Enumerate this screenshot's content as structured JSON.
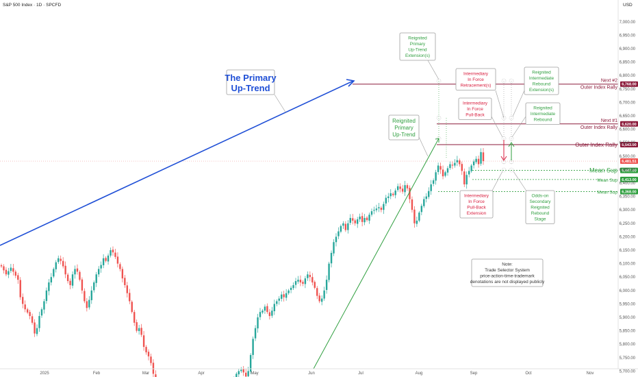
{
  "header": {
    "symbol": "S&P 500 Index · 1D · SPCFD",
    "currency": "USD"
  },
  "colors": {
    "up": "#26a69a",
    "down": "#ef5350",
    "blue": "#1f4fd6",
    "green": "#2e9e3e",
    "red": "#d81b3c",
    "maroon": "#8b1a3a",
    "grey": "#7f7f7f"
  },
  "chart_data": {
    "type": "candlestick",
    "title": "",
    "ylim": [
      5630,
      7060
    ],
    "y_ticks": [
      "7,000.00",
      "6,950.00",
      "6,900.00",
      "6,850.00",
      "6,800.00",
      "6,750.00",
      "6,700.00",
      "6,650.00",
      "6,600.00",
      "6,550.00",
      "6,500.00",
      "6,450.00",
      "6,400.00",
      "6,350.00",
      "6,300.00",
      "6,250.00",
      "6,200.00",
      "6,150.00",
      "6,100.00",
      "6,050.00",
      "6,000.00",
      "5,950.00",
      "5,900.00",
      "5,850.00",
      "5,800.00",
      "5,750.00",
      "5,700.00",
      "5,650.00"
    ],
    "x_ticks": [
      "2025",
      "Feb",
      "Mar",
      "Apr",
      "May",
      "Jun",
      "Jul",
      "Aug",
      "Sep",
      "Oct",
      "Nov"
    ],
    "closes": [
      6090,
      6075,
      6060,
      6072,
      6085,
      6070,
      6055,
      6040,
      5975,
      5950,
      5930,
      5918,
      5905,
      5880,
      5840,
      5860,
      5905,
      5930,
      5960,
      6000,
      6030,
      6050,
      6080,
      6105,
      6120,
      6110,
      6090,
      6060,
      6035,
      6020,
      6060,
      6080,
      6070,
      6040,
      6000,
      5960,
      5935,
      5965,
      6000,
      6030,
      6060,
      6080,
      6095,
      6120,
      6110,
      6130,
      6150,
      6142,
      6125,
      6100,
      6080,
      6045,
      6020,
      5990,
      5960,
      5920,
      5880,
      5850,
      5860,
      5835,
      5790,
      5770,
      5755,
      5730,
      5690,
      5665,
      5650,
      5640,
      5630,
      5635,
      5645,
      5640,
      5650,
      5640,
      5635,
      5640,
      5645,
      5650,
      5645,
      5640,
      5635,
      5630,
      5645,
      5650,
      5645,
      5640,
      5645,
      5650,
      5645,
      5640,
      5635,
      5642,
      5650,
      5660,
      5665,
      5660,
      5655,
      5650,
      5665,
      5690,
      5700,
      5705,
      5695,
      5680,
      5700,
      5760,
      5820,
      5860,
      5900,
      5920,
      5925,
      5940,
      5920,
      5905,
      5925,
      5950,
      5960,
      5970,
      5985,
      5975,
      5990,
      6000,
      6010,
      6020,
      6035,
      6040,
      6030,
      6025,
      6045,
      6060,
      6050,
      6030,
      6010,
      5980,
      5960,
      5970,
      6000,
      6040,
      6100,
      6140,
      6180,
      6200,
      6220,
      6240,
      6250,
      6225,
      6250,
      6270,
      6260,
      6250,
      6265,
      6275,
      6255,
      6270,
      6262,
      6282,
      6295,
      6300,
      6305,
      6310,
      6300,
      6322,
      6345,
      6350,
      6362,
      6355,
      6372,
      6388,
      6378,
      6368,
      6392,
      6380,
      6340,
      6300,
      6250,
      6260,
      6290,
      6315,
      6340,
      6350,
      6370,
      6395,
      6410,
      6440,
      6465,
      6450,
      6425,
      6440,
      6455,
      6470,
      6465,
      6475,
      6485,
      6470,
      6445,
      6395,
      6430,
      6445,
      6465,
      6480,
      6490,
      6470,
      6515,
      6481.51
    ],
    "levels": [
      {
        "label": "Next #2",
        "sub": "Outer Index Rally",
        "value": 6768,
        "tag": "6,768.00"
      },
      {
        "label": "Next #1",
        "sub": "Outer Index Rally",
        "value": 6620,
        "tag": "6,620.00"
      },
      {
        "label": "Outer Index Rally",
        "value": 6543,
        "tag": "6,543.00"
      },
      {
        "label": "Mean Sup",
        "value": 6447,
        "tag": "6,447.00"
      },
      {
        "label": "Mean Sup",
        "value": 6413,
        "tag": "6,413.00"
      },
      {
        "label": "Mean Sup",
        "value": 6368,
        "tag": "6,368.00"
      }
    ],
    "last_price_tag": "6,481.51",
    "annotations": {
      "primary": "The Primary Up-Trend",
      "reignited_primary": "Reignited Primary Up-Trend",
      "reignited_primary_ext": "Reignited Primary Up-Trend Extension(s)",
      "retracement": "Intermediary In Force Retracement(s)",
      "pullback": "Intermediary In Force Pull-Back",
      "pullback_ext": "Intermediary In Force Pull-Back Extension",
      "rebound_ext": "Reignited Intermediate Rebound Extension(s)",
      "rebound": "Reignited Intermediate Rebound",
      "odds_on": "Odds-on Secondary Reignited Rebound Stage",
      "note": "Note: Trade Selector System price-action-time-trademark denotations are not displayed publicly"
    }
  }
}
